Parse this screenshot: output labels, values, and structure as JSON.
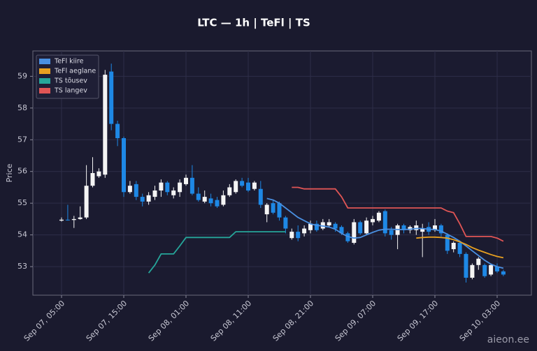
{
  "chart_data": {
    "type": "candlestick",
    "title": "LTC — 1h  |  TeFl  |  TS",
    "y_label": "Price",
    "watermark": "aieon.ee",
    "categories": [
      "Sep 07, 05:00",
      null,
      null,
      null,
      null,
      null,
      null,
      null,
      null,
      null,
      "Sep 07, 15:00",
      null,
      null,
      null,
      null,
      null,
      null,
      null,
      null,
      null,
      "Sep 08, 01:00",
      null,
      null,
      null,
      null,
      null,
      null,
      null,
      null,
      null,
      "Sep 08, 11:00",
      null,
      null,
      null,
      null,
      null,
      null,
      null,
      null,
      null,
      "Sep 08, 21:00",
      null,
      null,
      null,
      null,
      null,
      null,
      null,
      null,
      null,
      "Sep 09, 07:00",
      null,
      null,
      null,
      null,
      null,
      null,
      null,
      null,
      null,
      "Sep 09, 17:00",
      null,
      null,
      null,
      null,
      null,
      null,
      null,
      null,
      null,
      "Sep 10, 03:00",
      null
    ],
    "open": [
      54.45,
      54.48,
      54.47,
      54.5,
      54.55,
      55.55,
      55.85,
      55.9,
      59.15,
      57.5,
      57.05,
      55.35,
      55.6,
      55.2,
      55.05,
      55.2,
      55.4,
      55.65,
      55.25,
      55.35,
      55.6,
      55.8,
      55.3,
      55.05,
      55.15,
      55.1,
      54.95,
      55.25,
      55.35,
      55.7,
      55.65,
      55.45,
      55.45,
      54.65,
      55.0,
      55.0,
      54.55,
      53.9,
      54.1,
      54.05,
      54.15,
      54.35,
      54.2,
      54.3,
      54.35,
      54.25,
      54.05,
      53.75,
      54.4,
      54.05,
      54.4,
      54.45,
      54.75,
      54.15,
      54.0,
      54.3,
      54.15,
      54.15,
      54.1,
      54.25,
      54.15,
      54.3,
      54.0,
      53.55,
      53.75,
      53.4,
      52.65,
      53.05,
      53.05,
      52.75,
      53.0,
      52.85
    ],
    "close": [
      54.48,
      54.47,
      54.5,
      54.55,
      55.55,
      55.95,
      56.0,
      59.05,
      57.5,
      57.05,
      55.35,
      55.55,
      55.2,
      55.05,
      55.25,
      55.4,
      55.65,
      55.35,
      55.4,
      55.65,
      55.8,
      55.3,
      55.1,
      55.2,
      55.0,
      54.9,
      55.25,
      55.5,
      55.7,
      55.55,
      55.4,
      55.65,
      54.95,
      54.95,
      54.7,
      54.55,
      54.2,
      54.1,
      53.9,
      54.2,
      54.35,
      54.15,
      54.4,
      54.4,
      54.2,
      54.05,
      53.8,
      54.4,
      54.05,
      54.45,
      54.5,
      54.7,
      54.05,
      54.0,
      54.3,
      54.15,
      54.25,
      54.3,
      54.2,
      54.1,
      54.3,
      54.05,
      53.5,
      53.75,
      53.4,
      52.65,
      53.05,
      53.25,
      52.7,
      53.05,
      52.85,
      52.75
    ],
    "high": [
      54.55,
      54.95,
      54.6,
      54.9,
      56.2,
      56.45,
      56.1,
      59.2,
      59.4,
      57.6,
      57.1,
      55.7,
      55.7,
      55.3,
      55.35,
      55.55,
      55.75,
      55.7,
      55.5,
      55.75,
      55.9,
      56.2,
      55.5,
      55.4,
      55.3,
      55.2,
      55.4,
      55.6,
      55.75,
      55.8,
      55.8,
      55.7,
      55.7,
      55.0,
      55.1,
      55.05,
      54.6,
      54.2,
      54.3,
      54.3,
      54.45,
      54.45,
      54.5,
      54.5,
      54.4,
      54.3,
      54.1,
      54.5,
      54.45,
      54.55,
      54.6,
      54.75,
      54.8,
      54.25,
      54.35,
      54.35,
      54.3,
      54.45,
      54.35,
      54.4,
      54.5,
      54.35,
      54.05,
      53.8,
      53.8,
      53.45,
      53.1,
      53.3,
      53.1,
      53.1,
      53.1,
      52.9
    ],
    "low": [
      54.42,
      54.45,
      54.22,
      54.48,
      54.5,
      55.5,
      55.8,
      55.8,
      57.3,
      56.8,
      55.2,
      55.3,
      55.1,
      54.9,
      54.95,
      55.1,
      55.2,
      55.25,
      55.15,
      55.2,
      55.55,
      55.25,
      55.05,
      55.0,
      54.9,
      54.85,
      54.9,
      55.2,
      55.3,
      55.5,
      55.35,
      55.4,
      54.85,
      54.4,
      54.65,
      54.45,
      54.05,
      53.85,
      53.8,
      53.95,
      54.05,
      54.1,
      54.15,
      54.25,
      54.1,
      54.0,
      53.75,
      53.7,
      54.0,
      54.0,
      54.3,
      54.4,
      53.95,
      53.85,
      53.55,
      54.05,
      54.05,
      54.0,
      53.3,
      54.0,
      54.1,
      53.95,
      53.4,
      53.45,
      53.3,
      52.5,
      52.6,
      52.9,
      52.65,
      52.7,
      52.8,
      52.7
    ],
    "up_color": "#f4f4f4",
    "down_color": "#1e88e5",
    "series": [
      {
        "name": "TeFl kiire",
        "color": "#4a90e2",
        "values": [
          null,
          null,
          null,
          null,
          null,
          null,
          null,
          null,
          null,
          null,
          null,
          null,
          null,
          null,
          null,
          null,
          null,
          null,
          null,
          null,
          null,
          null,
          null,
          null,
          null,
          null,
          null,
          null,
          null,
          null,
          null,
          null,
          null,
          55.15,
          55.1,
          55.0,
          54.85,
          54.7,
          54.55,
          54.45,
          54.35,
          54.3,
          54.28,
          54.25,
          54.18,
          54.05,
          53.95,
          53.9,
          53.92,
          54.0,
          54.08,
          54.15,
          54.18,
          54.18,
          54.17,
          54.17,
          54.18,
          54.2,
          54.2,
          54.18,
          54.17,
          54.12,
          54.02,
          53.92,
          53.8,
          53.65,
          53.5,
          53.35,
          53.2,
          53.08,
          53.0,
          52.95
        ]
      },
      {
        "name": "TeFl aeglane",
        "color": "#e8a020",
        "values": [
          null,
          null,
          null,
          null,
          null,
          null,
          null,
          null,
          null,
          null,
          null,
          null,
          null,
          null,
          null,
          null,
          null,
          null,
          null,
          null,
          null,
          null,
          null,
          null,
          null,
          null,
          null,
          null,
          null,
          null,
          null,
          null,
          null,
          null,
          null,
          null,
          null,
          null,
          null,
          null,
          null,
          null,
          null,
          null,
          null,
          null,
          null,
          null,
          null,
          null,
          null,
          null,
          null,
          null,
          null,
          null,
          null,
          53.9,
          53.92,
          53.93,
          53.93,
          53.92,
          53.9,
          53.85,
          53.78,
          53.7,
          53.6,
          53.52,
          53.45,
          53.38,
          53.32,
          53.28
        ]
      },
      {
        "name": "TS tõusev",
        "color": "#26a69a",
        "values": [
          null,
          null,
          null,
          null,
          null,
          null,
          null,
          null,
          null,
          null,
          null,
          null,
          null,
          null,
          52.8,
          53.05,
          53.4,
          53.4,
          53.4,
          53.65,
          53.92,
          53.92,
          53.92,
          53.92,
          53.92,
          53.92,
          53.92,
          53.92,
          54.1,
          54.1,
          54.1,
          54.1,
          54.1,
          54.1,
          54.1,
          54.1,
          54.1,
          null,
          null,
          null,
          null,
          null,
          null,
          null,
          null,
          null,
          null,
          null,
          null,
          null,
          null,
          null,
          null,
          null,
          null,
          null,
          null,
          null,
          null,
          null,
          null,
          null,
          null,
          null,
          null,
          null,
          null,
          null,
          null,
          null,
          null,
          null
        ]
      },
      {
        "name": "TS langev",
        "color": "#e05555",
        "values": [
          null,
          null,
          null,
          null,
          null,
          null,
          null,
          null,
          null,
          null,
          null,
          null,
          null,
          null,
          null,
          null,
          null,
          null,
          null,
          null,
          null,
          null,
          null,
          null,
          null,
          null,
          null,
          null,
          null,
          null,
          null,
          null,
          null,
          null,
          null,
          null,
          null,
          55.5,
          55.5,
          55.45,
          55.45,
          55.45,
          55.45,
          55.45,
          55.45,
          55.2,
          54.85,
          54.85,
          54.85,
          54.85,
          54.85,
          54.85,
          54.85,
          54.85,
          54.85,
          54.85,
          54.85,
          54.85,
          54.85,
          54.85,
          54.85,
          54.85,
          54.75,
          54.7,
          54.35,
          53.95,
          53.95,
          53.95,
          53.95,
          53.95,
          53.9,
          53.8
        ]
      }
    ],
    "ylim": [
      52.1,
      59.8
    ],
    "yticks": [
      53,
      54,
      55,
      56,
      57,
      58,
      59
    ],
    "grid": true,
    "legend": "upper left"
  }
}
